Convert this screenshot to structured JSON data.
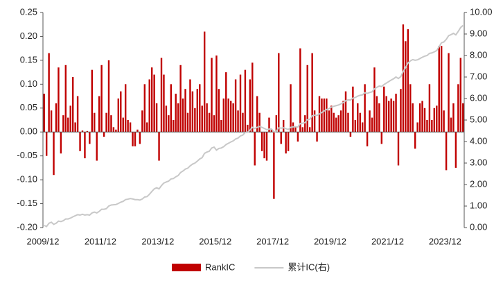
{
  "chart_data": {
    "type": "bar_line",
    "categories": [
      "2009/12",
      null,
      null,
      null,
      null,
      null,
      null,
      null,
      null,
      null,
      null,
      null,
      null,
      null,
      null,
      null,
      null,
      null,
      null,
      null,
      null,
      null,
      null,
      null,
      "2011/12",
      null,
      null,
      null,
      null,
      null,
      null,
      null,
      null,
      null,
      null,
      null,
      null,
      null,
      null,
      null,
      null,
      null,
      null,
      null,
      null,
      null,
      null,
      null,
      "2013/12",
      null,
      null,
      null,
      null,
      null,
      null,
      null,
      null,
      null,
      null,
      null,
      null,
      null,
      null,
      null,
      null,
      null,
      null,
      null,
      null,
      null,
      null,
      null,
      "2015/12",
      null,
      null,
      null,
      null,
      null,
      null,
      null,
      null,
      null,
      null,
      null,
      null,
      null,
      null,
      null,
      null,
      null,
      null,
      null,
      null,
      null,
      null,
      null,
      "2017/12",
      null,
      null,
      null,
      null,
      null,
      null,
      null,
      null,
      null,
      null,
      null,
      null,
      null,
      null,
      null,
      null,
      null,
      null,
      null,
      null,
      null,
      null,
      null,
      "2019/12",
      null,
      null,
      null,
      null,
      null,
      null,
      null,
      null,
      null,
      null,
      null,
      null,
      null,
      null,
      null,
      null,
      null,
      null,
      null,
      null,
      null,
      null,
      null,
      "2021/12",
      null,
      null,
      null,
      null,
      null,
      null,
      null,
      null,
      null,
      null,
      null,
      null,
      null,
      null,
      null,
      null,
      null,
      null,
      null,
      null,
      null,
      null,
      null,
      "2023/12",
      null,
      null,
      null,
      null,
      null,
      null,
      null
    ],
    "series": [
      {
        "name": "RankIC",
        "color": "#c00000",
        "kind": "bar",
        "axis": "y",
        "values": [
          0.08,
          -0.05,
          0.165,
          0.045,
          -0.09,
          0.06,
          0.135,
          -0.045,
          0.035,
          0.14,
          0.03,
          0.055,
          0.115,
          0.02,
          0.075,
          -0.04,
          0.003,
          -0.055,
          0.002,
          -0.025,
          0.13,
          0.04,
          -0.06,
          0.075,
          0.14,
          -0.01,
          0.04,
          0.15,
          0.035,
          0.01,
          0.005,
          0.07,
          0.085,
          0.03,
          0.1,
          0.025,
          0.02,
          -0.03,
          -0.03,
          0.005,
          -0.025,
          0.045,
          0.1,
          0.02,
          0.11,
          0.135,
          0.12,
          0.06,
          -0.06,
          0.155,
          0.12,
          0.055,
          0.035,
          0.1,
          0.025,
          0.08,
          0.06,
          0.14,
          0.07,
          0.09,
          0.04,
          0.11,
          0.085,
          0.05,
          0.09,
          0.1,
          0.055,
          0.21,
          0.06,
          0.04,
          0.155,
          0.035,
          0.16,
          0.09,
          0.025,
          0.07,
          0.125,
          0.07,
          0.065,
          0.06,
          0.11,
          0.045,
          0.12,
          0.04,
          0.13,
          0.015,
          0.11,
          0.145,
          -0.07,
          0.075,
          0.04,
          -0.04,
          -0.055,
          -0.06,
          0.03,
          0.005,
          -0.14,
          0.035,
          0.165,
          -0.025,
          0.025,
          -0.045,
          -0.04,
          0.1,
          0.02,
          0.01,
          -0.02,
          0.175,
          0.01,
          0.035,
          0.14,
          0.01,
          0.165,
          0.045,
          -0.02,
          0.075,
          0.07,
          0.07,
          0.07,
          0.045,
          0.055,
          0.04,
          0.03,
          0.035,
          0.045,
          0.065,
          0.085,
          0.04,
          -0.01,
          0.095,
          0.025,
          0.06,
          0.04,
          0.02,
          0.1,
          -0.03,
          0.045,
          0.03,
          0.135,
          0.075,
          0.06,
          -0.025,
          0.095,
          0.075,
          0.065,
          0.07,
          0.065,
          0.08,
          -0.07,
          0.09,
          0.225,
          0.19,
          0.215,
          0.1,
          0.06,
          -0.035,
          0.02,
          0.06,
          0.065,
          0.05,
          0.025,
          0.1,
          0.025,
          0.05,
          0.055,
          0.18,
          0.18,
          0.045,
          -0.08,
          0.165,
          0.03,
          0.06,
          -0.075,
          0.1,
          0.155,
          0.06
        ]
      },
      {
        "name": "累计IC(右)",
        "color": "#c8c8c8",
        "kind": "line",
        "axis": "y2",
        "values": [
          0.1,
          0.05,
          0.2,
          0.25,
          0.15,
          0.2,
          0.3,
          0.28,
          0.32,
          0.4,
          0.4,
          0.44,
          0.5,
          0.55,
          0.6,
          0.58,
          0.62,
          0.58,
          0.6,
          0.58,
          0.68,
          0.72,
          0.68,
          0.75,
          0.85,
          0.85,
          0.88,
          1.0,
          1.05,
          1.06,
          1.07,
          1.12,
          1.18,
          1.22,
          1.3,
          1.32,
          1.35,
          1.33,
          1.3,
          1.3,
          1.28,
          1.33,
          1.42,
          1.44,
          1.55,
          1.68,
          1.8,
          1.85,
          1.8,
          1.95,
          2.07,
          2.12,
          2.16,
          2.26,
          2.28,
          2.36,
          2.42,
          2.56,
          2.63,
          2.72,
          2.76,
          2.87,
          2.95,
          3.0,
          3.09,
          3.19,
          3.25,
          3.45,
          3.51,
          3.55,
          3.7,
          3.74,
          3.6,
          3.68,
          3.7,
          3.76,
          3.86,
          3.92,
          3.98,
          4.03,
          4.12,
          4.16,
          4.26,
          4.3,
          4.42,
          4.43,
          4.53,
          4.66,
          4.6,
          4.66,
          4.7,
          4.66,
          4.61,
          4.55,
          4.58,
          4.58,
          4.45,
          4.48,
          4.64,
          4.62,
          4.64,
          4.6,
          4.56,
          4.66,
          4.68,
          4.69,
          4.67,
          4.84,
          4.85,
          4.88,
          5.02,
          5.03,
          5.19,
          5.23,
          5.21,
          5.28,
          5.35,
          5.42,
          5.49,
          5.53,
          5.6,
          5.64,
          5.67,
          5.7,
          5.75,
          5.81,
          5.9,
          5.94,
          5.93,
          6.02,
          6.05,
          6.11,
          6.15,
          6.17,
          6.27,
          6.24,
          6.28,
          6.31,
          6.45,
          6.52,
          6.58,
          6.56,
          6.65,
          6.72,
          6.79,
          6.86,
          6.92,
          7.0,
          6.93,
          7.02,
          7.25,
          7.44,
          7.65,
          7.75,
          7.81,
          7.78,
          7.8,
          7.86,
          7.92,
          7.97,
          8.0,
          8.1,
          8.12,
          8.17,
          8.23,
          8.41,
          8.59,
          8.63,
          8.75,
          8.92,
          8.97,
          9.03,
          8.96,
          9.12,
          9.3,
          9.4
        ]
      }
    ],
    "ylim": [
      -0.2,
      0.25
    ],
    "yticks": [
      {
        "value": -0.2,
        "label": "-0.20"
      },
      -0.15,
      {
        "value": -0.1,
        "label": "-0.10"
      },
      -0.05,
      {
        "value": 0,
        "label": "0.00"
      },
      0.05,
      {
        "value": 0.1,
        "label": "0.10"
      },
      0.15,
      {
        "value": 0.2,
        "label": "0.20"
      },
      0.25
    ],
    "y2lim": [
      0,
      10
    ],
    "y2ticks": [
      {
        "value": 0,
        "label": "0.00"
      },
      {
        "value": 1,
        "label": "1.00"
      },
      {
        "value": 2,
        "label": "2.00"
      },
      {
        "value": 3,
        "label": "3.00"
      },
      {
        "value": 4,
        "label": "4.00"
      },
      {
        "value": 5,
        "label": "5.00"
      },
      {
        "value": 6,
        "label": "6.00"
      },
      {
        "value": 7,
        "label": "7.00"
      },
      {
        "value": 8,
        "label": "8.00"
      },
      {
        "value": 9,
        "label": "9.00"
      },
      {
        "value": 10,
        "label": "10.00"
      }
    ],
    "legend": "bottom"
  }
}
